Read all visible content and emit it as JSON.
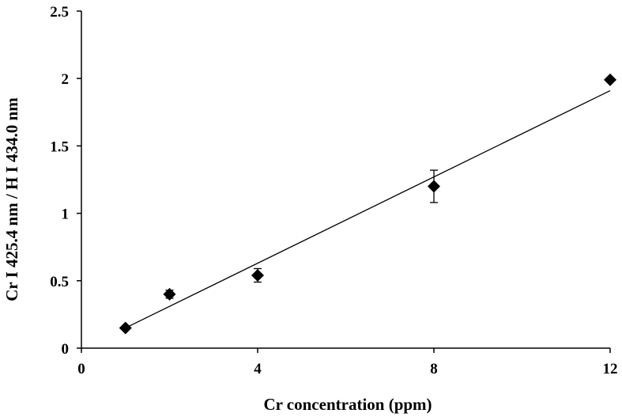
{
  "chart_data": {
    "type": "scatter",
    "title": "",
    "xlabel": "Cr concentration (ppm)",
    "ylabel": "Cr I 425.4 nm / H I 434.0 nm",
    "xlim": [
      0,
      12
    ],
    "ylim": [
      0,
      2.5
    ],
    "x_ticks": [
      {
        "value": 0,
        "label": "0"
      },
      {
        "value": 4,
        "label": "4"
      },
      {
        "value": 8,
        "label": "8"
      },
      {
        "value": 12,
        "label": "12"
      }
    ],
    "y_ticks": [
      {
        "value": 0,
        "label": "0"
      },
      {
        "value": 0.5,
        "label": "0.5"
      },
      {
        "value": 1,
        "label": "1"
      },
      {
        "value": 1.5,
        "label": "1.5"
      },
      {
        "value": 2,
        "label": "2"
      },
      {
        "value": 2.5,
        "label": "2.5"
      }
    ],
    "series": [
      {
        "name": "Cr I 425.4 nm / H I 434.0 nm",
        "marker": "diamond",
        "color": "#000000",
        "points": [
          {
            "x": 1,
            "y": 0.15,
            "err": 0
          },
          {
            "x": 2,
            "y": 0.4,
            "err": 0.03
          },
          {
            "x": 4,
            "y": 0.54,
            "err": 0.05
          },
          {
            "x": 8,
            "y": 1.2,
            "err": 0.12
          },
          {
            "x": 12,
            "y": 1.99,
            "err": 0
          }
        ]
      }
    ],
    "trendline": {
      "type": "linear",
      "x_start": 1,
      "y_start": 0.15,
      "x_end": 12,
      "y_end": 1.91
    }
  }
}
